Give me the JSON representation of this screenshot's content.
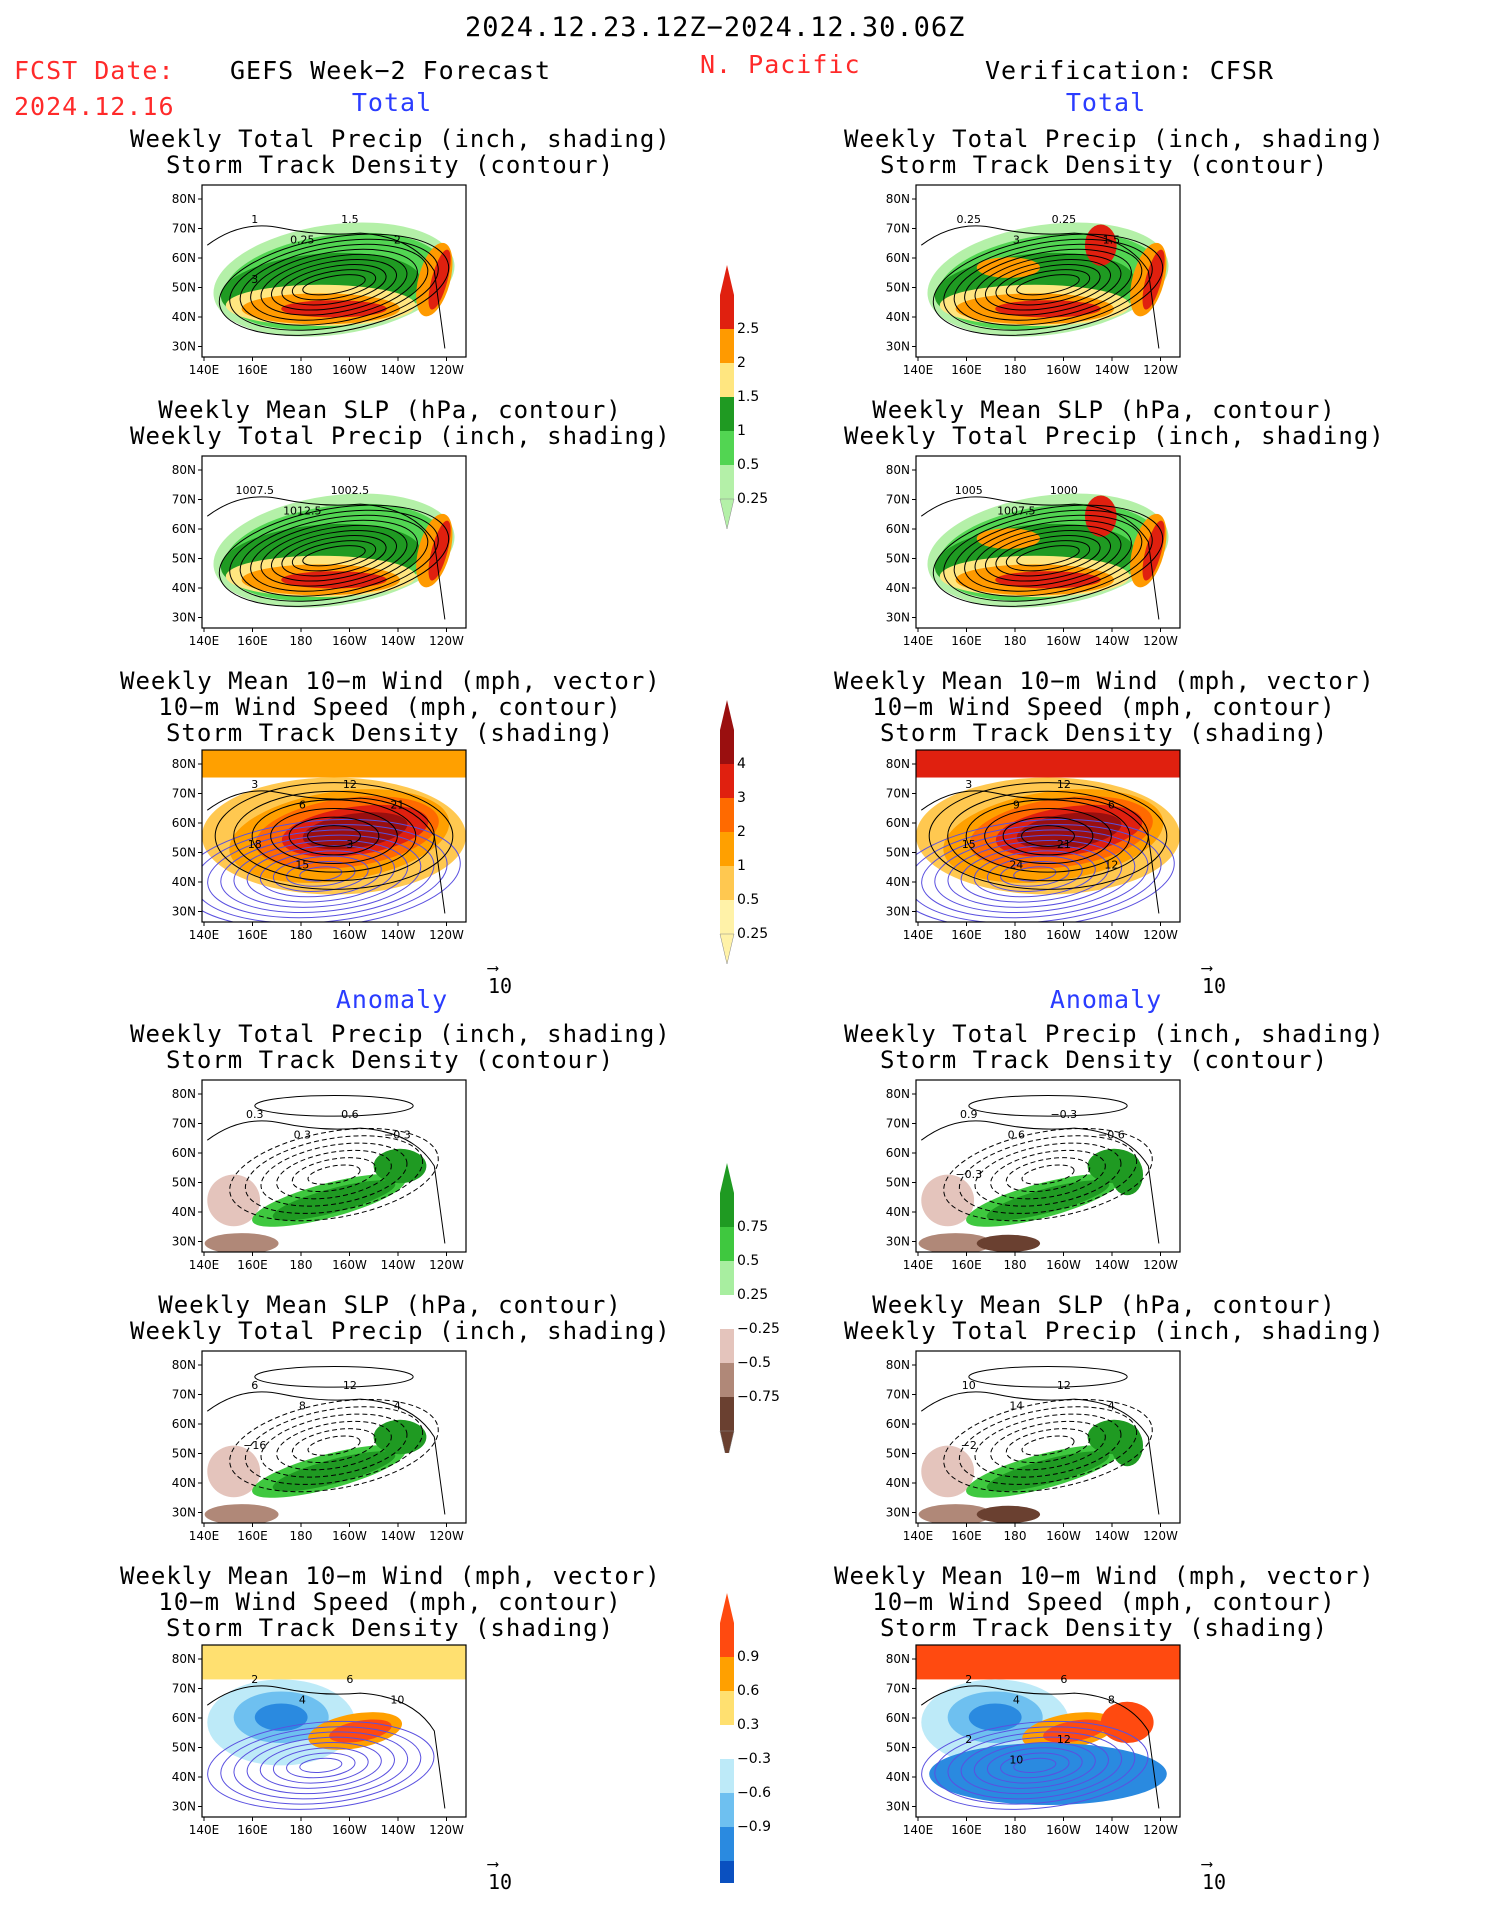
{
  "header": {
    "date_range": "2024.12.23.12Z−2024.12.30.06Z",
    "fcst_label": "FCST Date:",
    "fcst_date": "2024.12.16",
    "left_title": "GEFS Week−2 Forecast",
    "region": "N. Pacific",
    "right_title": "Verification: CFSR"
  },
  "sections": {
    "total": "Total",
    "anomaly": "Anomaly"
  },
  "axes": {
    "lat_labels": [
      "80N",
      "70N",
      "60N",
      "50N",
      "40N",
      "30N"
    ],
    "lon_labels": [
      "140E",
      "160E",
      "180",
      "160W",
      "140W",
      "120W"
    ]
  },
  "panel_titles": {
    "precip_storm": "Weekly Total Precip (inch, shading)\nStorm Track Density (contour)",
    "slp_precip": "Weekly Mean SLP (hPa, contour)\nWeekly Total Precip (inch, shading)",
    "wind_storm": "Weekly Mean 10−m Wind (mph, vector)\n10−m Wind Speed (mph, contour)\nStorm Track Density (shading)"
  },
  "vector_reference": "10",
  "colorbars": {
    "total_precip": {
      "labels": [
        "2.5",
        "2",
        "1.5",
        "1",
        "0.5",
        "0.25"
      ],
      "colors": [
        "#e0200f",
        "#ff9a00",
        "#ffe680",
        "#1f9a22",
        "#52d552",
        "#b4f0a8"
      ]
    },
    "total_storm": {
      "labels": [
        "4",
        "3",
        "2",
        "1",
        "0.5",
        "0.25"
      ],
      "colors": [
        "#9a0f0f",
        "#e0200f",
        "#ff6a00",
        "#ffa000",
        "#ffc850",
        "#fff2a8"
      ]
    },
    "anom_precip": {
      "labels": [
        "0.75",
        "0.5",
        "0.25",
        "−0.25",
        "−0.5",
        "−0.75"
      ],
      "colors": [
        "#1f9a22",
        "#3fc83f",
        "#a8eea0",
        "#ffffff",
        "#e4c4bc",
        "#b08878",
        "#6a4030"
      ]
    },
    "anom_storm": {
      "labels": [
        "0.9",
        "0.6",
        "0.3",
        "−0.3",
        "−0.6",
        "−0.9"
      ],
      "colors": [
        "#ff4a10",
        "#ffa000",
        "#ffe070",
        "#ffffff",
        "#bdeaf8",
        "#6ec0f0",
        "#2a8ae0",
        "#0a50c0"
      ]
    }
  },
  "contour_labels": {
    "f_precip_storm": [
      "1",
      "0.25",
      "1.5",
      "2",
      "3"
    ],
    "v_precip_storm": [
      "0.25",
      "3",
      "0.25",
      "1.5"
    ],
    "f_slp_precip": [
      "1007.5",
      "1012.5",
      "1002.5"
    ],
    "v_slp_precip": [
      "1005",
      "1007.5",
      "1000"
    ],
    "f_wind_storm": [
      "3",
      "6",
      "12",
      "21",
      "18",
      "15",
      "3"
    ],
    "v_wind_storm": [
      "3",
      "9",
      "12",
      "6",
      "15",
      "24",
      "21",
      "12"
    ],
    "f_anom_precip": [
      "0.3",
      "0.3",
      "0.6",
      "−0.3"
    ],
    "v_anom_precip": [
      "0.9",
      "0.6",
      "−0.3",
      "−0.6",
      "−0.3"
    ],
    "f_anom_slp": [
      "6",
      "8",
      "12",
      "4",
      "−16"
    ],
    "v_anom_slp": [
      "10",
      "14",
      "12",
      "4",
      "−2"
    ],
    "f_anom_wind": [
      "2",
      "4",
      "6",
      "10"
    ],
    "v_anom_wind": [
      "2",
      "4",
      "6",
      "8",
      "2",
      "10",
      "12"
    ]
  },
  "colors": {
    "red_text": "#ff2a2a",
    "blue_text": "#2a3cff"
  }
}
